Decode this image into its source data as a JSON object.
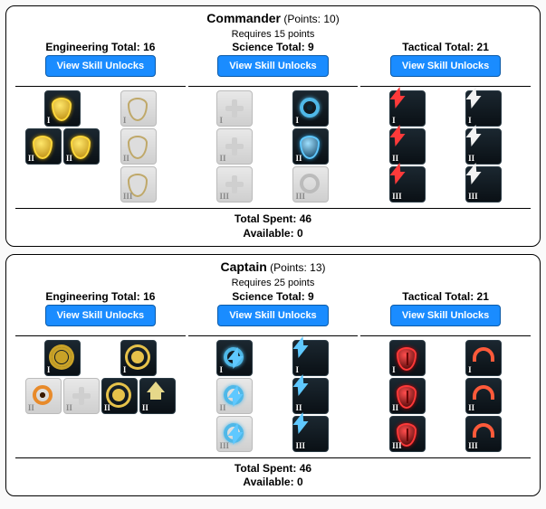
{
  "labels": {
    "view_unlocks": "View Skill Unlocks",
    "total_spent_label": "Total Spent:",
    "available_label": "Available:"
  },
  "colors": {
    "button_bg": "#1a8cff",
    "button_border": "#0b5aa8",
    "box_border": "#000000",
    "bg": "#fafafa",
    "cell_dark_top": "#1b2730",
    "cell_dark_bottom": "#0a1015",
    "cell_faded": "#cfcfcf",
    "gold": "#ffd83a",
    "blue": "#5fc8ff",
    "red": "#ff3a3a",
    "orange": "#e88a2a"
  },
  "ranks": [
    {
      "id": "commander",
      "title": "Commander",
      "points_label": "(Points: 10)",
      "requires": "Requires 15 points",
      "total_spent": 46,
      "available": 0,
      "columns": [
        {
          "id": "engineering",
          "header": "Engineering Total: 16",
          "tiers": [
            {
              "roman": "I",
              "cells": [
                {
                  "bg": "dark",
                  "glyph": "shield-gold",
                  "count": 1
                },
                {
                  "bg": "faded",
                  "glyph": "shield-gold-f",
                  "count": 1
                }
              ]
            },
            {
              "roman": "II",
              "cells": [
                {
                  "bg": "dark",
                  "glyph": "shield-gold",
                  "count": 2
                },
                {
                  "bg": "faded",
                  "glyph": "shield-gold-f",
                  "count": 1
                }
              ]
            },
            {
              "roman": "III",
              "cells": [
                {
                  "bg": "empty",
                  "glyph": "none",
                  "count": 0
                },
                {
                  "bg": "faded",
                  "glyph": "shield-gold-f",
                  "count": 1
                }
              ]
            }
          ]
        },
        {
          "id": "science",
          "header": "Science Total: 9",
          "tiers": [
            {
              "roman": "I",
              "cells": [
                {
                  "bg": "faded",
                  "glyph": "cross-light",
                  "count": 1
                },
                {
                  "bg": "dark",
                  "glyph": "ring-blue",
                  "count": 1
                }
              ]
            },
            {
              "roman": "II",
              "cells": [
                {
                  "bg": "faded",
                  "glyph": "cross-light",
                  "count": 1
                },
                {
                  "bg": "dark",
                  "glyph": "shield-blue",
                  "count": 1
                }
              ]
            },
            {
              "roman": "III",
              "cells": [
                {
                  "bg": "faded",
                  "glyph": "cross-light",
                  "count": 1
                },
                {
                  "bg": "faded",
                  "glyph": "ring-grey",
                  "count": 1
                }
              ]
            }
          ]
        },
        {
          "id": "tactical",
          "header": "Tactical Total: 21",
          "tiers": [
            {
              "roman": "I",
              "cells": [
                {
                  "bg": "dark",
                  "glyph": "bolt-red",
                  "count": 1
                },
                {
                  "bg": "dark",
                  "glyph": "bolt-white",
                  "count": 1
                }
              ]
            },
            {
              "roman": "II",
              "cells": [
                {
                  "bg": "dark",
                  "glyph": "bolt-red",
                  "count": 1
                },
                {
                  "bg": "dark",
                  "glyph": "bolt-white",
                  "count": 1
                }
              ]
            },
            {
              "roman": "III",
              "cells": [
                {
                  "bg": "dark",
                  "glyph": "bolt-red",
                  "count": 1
                },
                {
                  "bg": "dark",
                  "glyph": "bolt-white",
                  "count": 1
                }
              ]
            }
          ]
        }
      ]
    },
    {
      "id": "captain",
      "title": "Captain",
      "points_label": "(Points: 13)",
      "requires": "Requires 25 points",
      "total_spent": 46,
      "available": 0,
      "columns": [
        {
          "id": "engineering",
          "header": "Engineering Total: 16",
          "tiers": [
            {
              "roman": "I",
              "cells": [
                {
                  "bg": "dark",
                  "glyph": "gear-gold",
                  "count": 1
                },
                {
                  "bg": "dark",
                  "glyph": "gear-gold2",
                  "count": 1
                }
              ]
            },
            {
              "roman": "II",
              "cells": [
                {
                  "bg": "faded",
                  "glyph": "ring-orange|cross-light",
                  "count": 2
                },
                {
                  "bg": "dark",
                  "glyph": "gear-gold2|house",
                  "count": 2
                }
              ]
            }
          ]
        },
        {
          "id": "science",
          "header": "Science Total: 9",
          "tiers": [
            {
              "roman": "I",
              "cells": [
                {
                  "bg": "dark",
                  "glyph": "bolt-blue-ring",
                  "count": 1
                },
                {
                  "bg": "dark",
                  "glyph": "bolt-blue",
                  "count": 1
                }
              ]
            },
            {
              "roman": "II",
              "cells": [
                {
                  "bg": "faded",
                  "glyph": "bolt-blue-ring",
                  "count": 1
                },
                {
                  "bg": "dark",
                  "glyph": "bolt-blue",
                  "count": 1
                }
              ]
            },
            {
              "roman": "III",
              "cells": [
                {
                  "bg": "faded",
                  "glyph": "bolt-blue-ring",
                  "count": 1
                },
                {
                  "bg": "dark",
                  "glyph": "bolt-blue",
                  "count": 1
                }
              ]
            }
          ]
        },
        {
          "id": "tactical",
          "header": "Tactical Total: 21",
          "tiers": [
            {
              "roman": "I",
              "cells": [
                {
                  "bg": "dark",
                  "glyph": "shield-red",
                  "count": 1
                },
                {
                  "bg": "dark",
                  "glyph": "arc-red",
                  "count": 1
                }
              ]
            },
            {
              "roman": "II",
              "cells": [
                {
                  "bg": "dark",
                  "glyph": "shield-red",
                  "count": 1
                },
                {
                  "bg": "dark",
                  "glyph": "arc-red",
                  "count": 1
                }
              ]
            },
            {
              "roman": "III",
              "cells": [
                {
                  "bg": "dark",
                  "glyph": "shield-red",
                  "count": 1
                },
                {
                  "bg": "dark",
                  "glyph": "arc-red",
                  "count": 1
                }
              ]
            }
          ]
        }
      ]
    }
  ]
}
